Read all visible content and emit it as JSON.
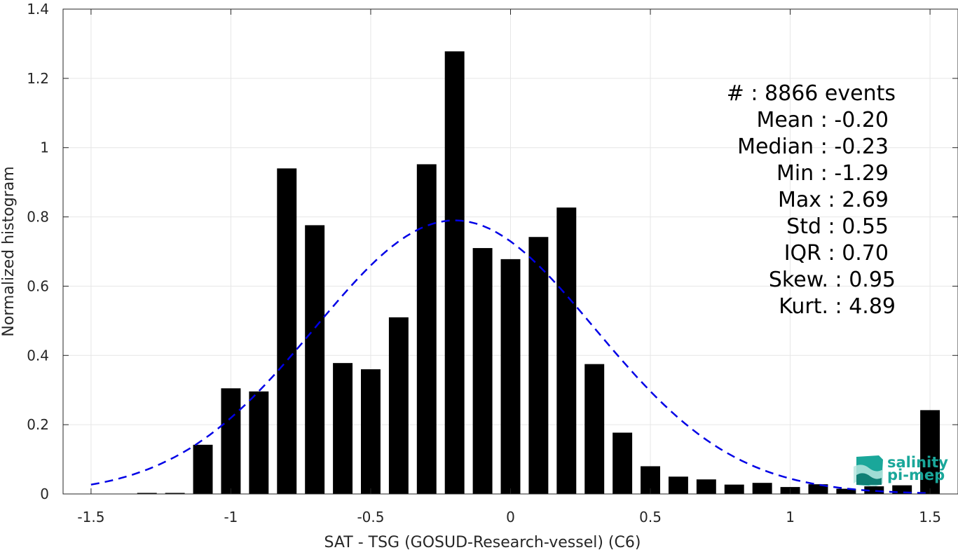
{
  "chart_data": {
    "type": "bar",
    "xlabel": "SAT - TSG (GOSUD-Research-vessel) (C6)",
    "ylabel": "Normalized histogram",
    "xlim": [
      -1.6,
      1.6
    ],
    "ylim": [
      0,
      1.4
    ],
    "xticks": [
      -1.5,
      -1,
      -0.5,
      0,
      0.5,
      1,
      1.5
    ],
    "xtick_labels": [
      "-1.5",
      "-1",
      "-0.5",
      "0",
      "0.5",
      "1",
      "1.5"
    ],
    "yticks": [
      0,
      0.2,
      0.4,
      0.6,
      0.8,
      1,
      1.2,
      1.4
    ],
    "ytick_labels": [
      "0",
      "0.2",
      "0.4",
      "0.6",
      "0.8",
      "1",
      "1.2",
      "1.4"
    ],
    "grid": true,
    "bar_color": "#000000",
    "bin_width": 0.1,
    "bar_width_fraction": 0.7,
    "bins": [
      {
        "x": -1.3,
        "y": 0.003
      },
      {
        "x": -1.2,
        "y": 0.003
      },
      {
        "x": -1.1,
        "y": 0.142
      },
      {
        "x": -1.0,
        "y": 0.305
      },
      {
        "x": -0.9,
        "y": 0.296
      },
      {
        "x": -0.8,
        "y": 0.94
      },
      {
        "x": -0.7,
        "y": 0.776
      },
      {
        "x": -0.6,
        "y": 0.378
      },
      {
        "x": -0.5,
        "y": 0.36
      },
      {
        "x": -0.4,
        "y": 0.51
      },
      {
        "x": -0.3,
        "y": 0.952
      },
      {
        "x": -0.2,
        "y": 1.278
      },
      {
        "x": -0.1,
        "y": 0.71
      },
      {
        "x": 0.0,
        "y": 0.678
      },
      {
        "x": 0.1,
        "y": 0.742
      },
      {
        "x": 0.2,
        "y": 0.827
      },
      {
        "x": 0.3,
        "y": 0.375
      },
      {
        "x": 0.4,
        "y": 0.177
      },
      {
        "x": 0.5,
        "y": 0.08
      },
      {
        "x": 0.6,
        "y": 0.05
      },
      {
        "x": 0.7,
        "y": 0.042
      },
      {
        "x": 0.8,
        "y": 0.027
      },
      {
        "x": 0.9,
        "y": 0.032
      },
      {
        "x": 1.0,
        "y": 0.02
      },
      {
        "x": 1.1,
        "y": 0.028
      },
      {
        "x": 1.2,
        "y": 0.015
      },
      {
        "x": 1.3,
        "y": 0.022
      },
      {
        "x": 1.4,
        "y": 0.025
      },
      {
        "x": 1.5,
        "y": 0.242
      }
    ],
    "fit_curve": {
      "type": "gaussian",
      "style": "dashed",
      "color": "#0000e6",
      "mean": -0.2,
      "std": 0.5,
      "peak": 0.79,
      "x_range": [
        -1.5,
        1.5
      ]
    },
    "stats": [
      "#  : 8866 events",
      "Mean : -0.20",
      "Median : -0.23",
      "Min : -1.29",
      "Max : 2.69",
      "Std : 0.55",
      "IQR : 0.70",
      "Skew. : 0.95",
      "Kurt. : 4.89"
    ]
  },
  "logo": {
    "line1": "salinity",
    "line2": "pi-mep",
    "color": "#1aa79a"
  }
}
